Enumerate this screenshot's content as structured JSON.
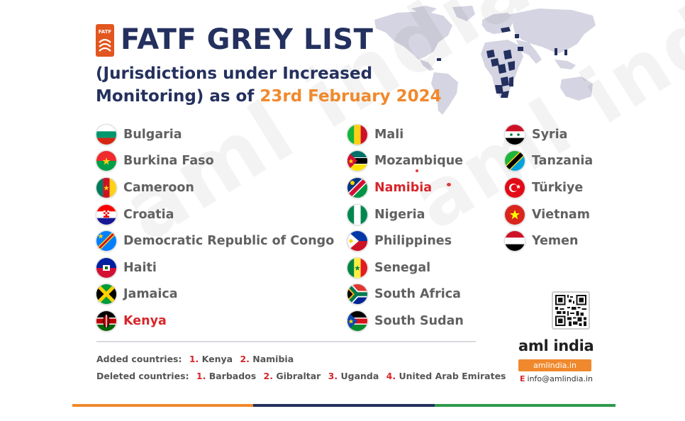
{
  "header": {
    "logo_text": "FATF",
    "title": "FATF GREY LIST",
    "subtitle_line1": "(Jurisdictions under Increased",
    "subtitle_line2_prefix": "Monitoring) as of ",
    "subtitle_date": "23rd February 2024"
  },
  "watermark": "aml india",
  "columns": [
    [
      {
        "name": "Bulgaria",
        "flag": "bulgaria-flag",
        "added": false
      },
      {
        "name": "Burkina Faso",
        "flag": "burkina-faso-flag",
        "added": false
      },
      {
        "name": "Cameroon",
        "flag": "cameroon-flag",
        "added": false
      },
      {
        "name": "Croatia",
        "flag": "croatia-flag",
        "added": false
      },
      {
        "name": "Democratic Republic of Congo",
        "flag": "drc-flag",
        "added": false
      },
      {
        "name": "Haiti",
        "flag": "haiti-flag",
        "added": false
      },
      {
        "name": "Jamaica",
        "flag": "jamaica-flag",
        "added": false
      },
      {
        "name": "Kenya",
        "flag": "kenya-flag",
        "added": true
      }
    ],
    [
      {
        "name": "Mali",
        "flag": "mali-flag",
        "added": false
      },
      {
        "name": "Mozambique",
        "flag": "mozambique-flag",
        "added": false
      },
      {
        "name": "Namibia",
        "flag": "namibia-flag",
        "added": true
      },
      {
        "name": "Nigeria",
        "flag": "nigeria-flag",
        "added": false
      },
      {
        "name": "Philippines",
        "flag": "philippines-flag",
        "added": false
      },
      {
        "name": "Senegal",
        "flag": "senegal-flag",
        "added": false
      },
      {
        "name": "South Africa",
        "flag": "south-africa-flag",
        "added": false
      },
      {
        "name": "South Sudan",
        "flag": "south-sudan-flag",
        "added": false
      }
    ],
    [
      {
        "name": "Syria",
        "flag": "syria-flag",
        "added": false
      },
      {
        "name": "Tanzania",
        "flag": "tanzania-flag",
        "added": false
      },
      {
        "name": "Türkiye",
        "flag": "turkiye-flag",
        "added": false
      },
      {
        "name": "Vietnam",
        "flag": "vietnam-flag",
        "added": false
      },
      {
        "name": "Yemen",
        "flag": "yemen-flag",
        "added": false
      }
    ]
  ],
  "notes": {
    "added_label": "Added countries:",
    "added": [
      {
        "num": "1.",
        "name": "Kenya"
      },
      {
        "num": "2.",
        "name": "Namibia"
      }
    ],
    "deleted_label": "Deleted countries:",
    "deleted": [
      {
        "num": "1.",
        "name": "Barbados"
      },
      {
        "num": "2.",
        "name": "Gibraltar"
      },
      {
        "num": "3.",
        "name": "Uganda"
      },
      {
        "num": "4.",
        "name": "United Arab Emirates"
      }
    ]
  },
  "brand": {
    "name": "aml india",
    "url": "amlindia.in",
    "email_label": "E",
    "email": "info@amlindia.in"
  },
  "colors": {
    "title": "#24305e",
    "accent_orange": "#f0892d",
    "added_red": "#d7262b",
    "map_land": "#d4d4e2",
    "map_highlight": "#24305e",
    "bar_green": "#2f9a4c"
  }
}
